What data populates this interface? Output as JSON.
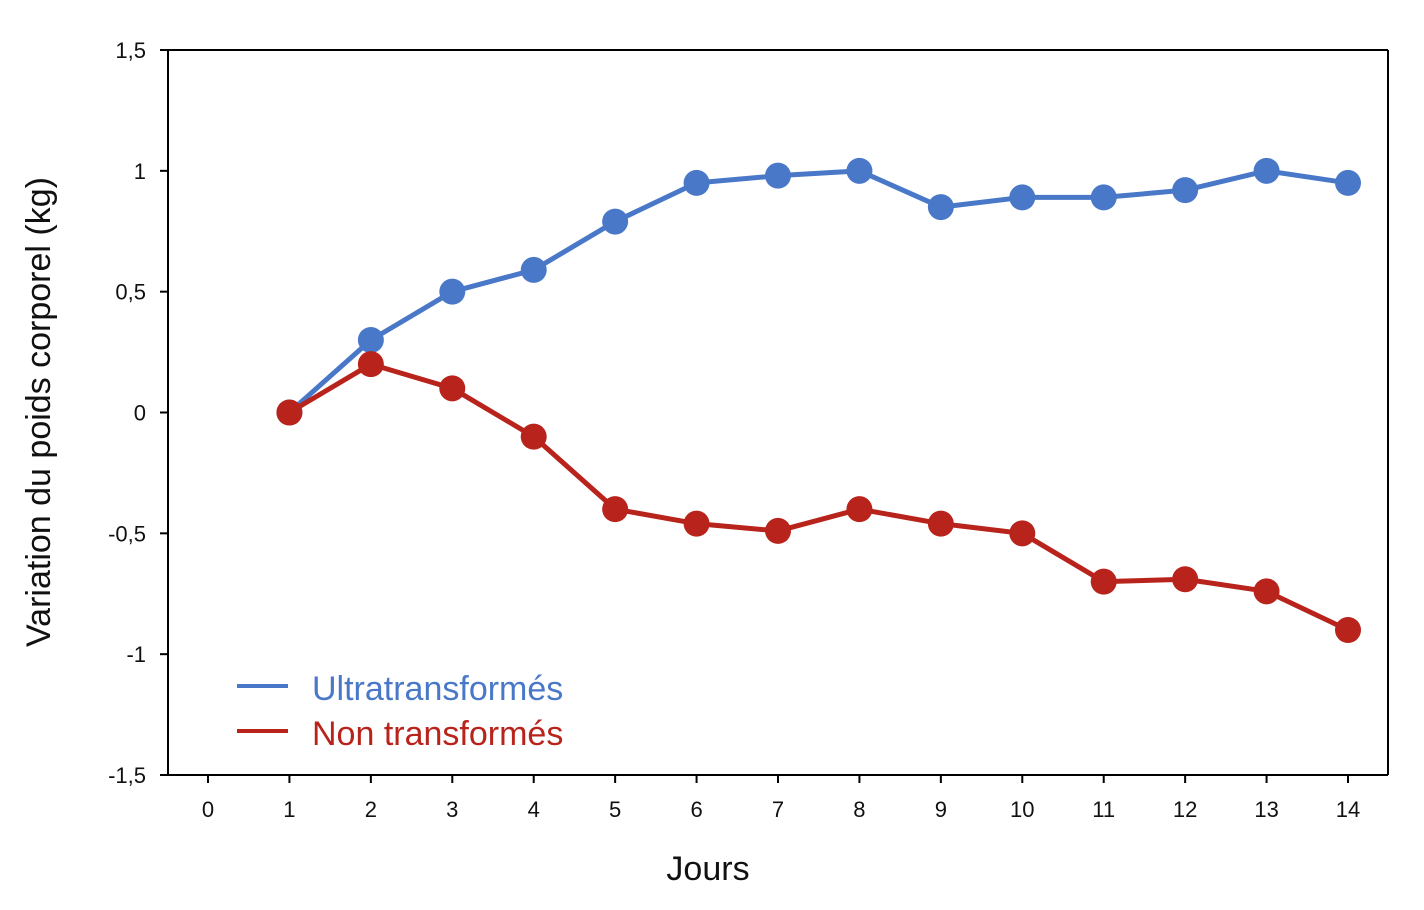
{
  "chart_data": {
    "type": "line",
    "title": "",
    "xlabel": "Jours",
    "ylabel": "Variation du poids corporel (kg)",
    "xlim": [
      0,
      14
    ],
    "ylim": [
      -1.5,
      1.5
    ],
    "x_ticks": [
      "0",
      "1",
      "2",
      "3",
      "4",
      "5",
      "6",
      "7",
      "8",
      "9",
      "10",
      "11",
      "12",
      "13",
      "14"
    ],
    "y_ticks": [
      {
        "value": 1.5,
        "label": "1,5"
      },
      {
        "value": 1,
        "label": "1"
      },
      {
        "value": 0.5,
        "label": "0,5"
      },
      {
        "value": 0,
        "label": "0"
      },
      {
        "value": -0.5,
        "label": "-0,5"
      },
      {
        "value": -1,
        "label": "-1"
      },
      {
        "value": -1.5,
        "label": "-1,5"
      }
    ],
    "grid": false,
    "legend_position": "bottom-left",
    "x": [
      1,
      2,
      3,
      4,
      5,
      6,
      7,
      8,
      9,
      10,
      11,
      12,
      13,
      14
    ],
    "series": [
      {
        "name": "Ultratransformés",
        "color": "#4a78c8",
        "values": [
          0,
          0.3,
          0.5,
          0.59,
          0.79,
          0.95,
          0.98,
          1.0,
          0.85,
          0.89,
          0.89,
          0.92,
          1.0,
          0.95
        ]
      },
      {
        "name": "Non transformés",
        "color": "#b8231b",
        "values": [
          0,
          0.2,
          0.1,
          -0.1,
          -0.4,
          -0.46,
          -0.49,
          -0.4,
          -0.46,
          -0.5,
          -0.7,
          -0.69,
          -0.74,
          -0.9
        ]
      }
    ]
  }
}
